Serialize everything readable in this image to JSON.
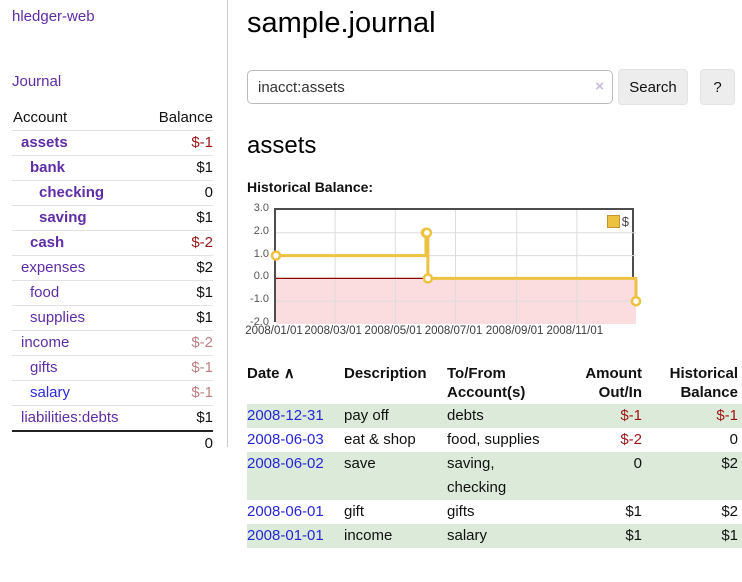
{
  "app": {
    "title": "hledger-web",
    "nav_journal": "Journal"
  },
  "sidebar": {
    "columns": {
      "account": "Account",
      "balance": "Balance"
    },
    "accounts": [
      {
        "name": "assets",
        "depth": 1,
        "emphasis": true,
        "balance": "$-1",
        "balance_tone": "negative",
        "link_tone": "purple"
      },
      {
        "name": "bank",
        "depth": 2,
        "emphasis": true,
        "balance": "$1",
        "balance_tone": "normal",
        "link_tone": "purple"
      },
      {
        "name": "checking",
        "depth": 3,
        "emphasis": true,
        "balance": "0",
        "balance_tone": "normal",
        "link_tone": "purple"
      },
      {
        "name": "saving",
        "depth": 3,
        "emphasis": true,
        "balance": "$1",
        "balance_tone": "normal",
        "link_tone": "purple"
      },
      {
        "name": "cash",
        "depth": 2,
        "emphasis": true,
        "balance": "$-2",
        "balance_tone": "negative",
        "link_tone": "purple"
      },
      {
        "name": "expenses",
        "depth": 1,
        "emphasis": false,
        "balance": "$2",
        "balance_tone": "normal",
        "link_tone": "purple"
      },
      {
        "name": "food",
        "depth": 2,
        "emphasis": false,
        "balance": "$1",
        "balance_tone": "normal",
        "link_tone": "purple"
      },
      {
        "name": "supplies",
        "depth": 2,
        "emphasis": false,
        "balance": "$1",
        "balance_tone": "normal",
        "link_tone": "purple"
      },
      {
        "name": "income",
        "depth": 1,
        "emphasis": false,
        "balance": "$-2",
        "balance_tone": "negative-faded",
        "link_tone": "purple"
      },
      {
        "name": "gifts",
        "depth": 2,
        "emphasis": false,
        "balance": "$-1",
        "balance_tone": "negative-faded",
        "link_tone": "purple"
      },
      {
        "name": "salary",
        "depth": 2,
        "emphasis": false,
        "balance": "$-1",
        "balance_tone": "negative-faded",
        "link_tone": "blue"
      },
      {
        "name": "liabilities:debts",
        "depth": 1,
        "emphasis": false,
        "balance": "$1",
        "balance_tone": "normal",
        "link_tone": "purple"
      }
    ],
    "total": "0"
  },
  "header": {
    "title": "sample.journal"
  },
  "search": {
    "value": "inacct:assets",
    "clear_icon": "×",
    "button_label": "Search",
    "help_label": "?"
  },
  "account_page": {
    "title": "assets",
    "chart_heading": "Historical Balance:"
  },
  "chart_data": {
    "type": "line",
    "step": true,
    "series": [
      {
        "name": "$",
        "color": "#edc240",
        "points": [
          [
            "2008-01-01",
            1
          ],
          [
            "2008-06-01",
            2
          ],
          [
            "2008-06-02",
            2
          ],
          [
            "2008-06-03",
            0
          ],
          [
            "2008-12-31",
            -1
          ]
        ]
      }
    ],
    "xlim": [
      "2008-01-01",
      "2008-12-31"
    ],
    "ylim": [
      -2,
      3
    ],
    "yticks": [
      3.0,
      2.0,
      1.0,
      0.0,
      -1.0,
      -2.0
    ],
    "ytick_labels": [
      "3.0",
      "2.0",
      "1.0",
      "0.0",
      "-1.0",
      "-2.0"
    ],
    "xticks": [
      "2008-01-01",
      "2008-03-01",
      "2008-05-01",
      "2008-07-01",
      "2008-09-01",
      "2008-11-01"
    ],
    "xtick_labels": [
      "2008/01/01",
      "2008/03/01",
      "2008/05/01",
      "2008/07/01",
      "2008/09/01",
      "2008/11/01"
    ],
    "grid": true,
    "legend": {
      "label": "$",
      "position": "top-right"
    },
    "zero_line_color": "#8b0000",
    "negative_region_fill": "#fbdde0"
  },
  "register": {
    "columns": [
      {
        "label": "Date",
        "sort_icon": "∧"
      },
      {
        "label": "Description"
      },
      {
        "label": "To/From",
        "label2": "Account(s)"
      },
      {
        "label": "Amount",
        "label2": "Out/In"
      },
      {
        "label": "Historical",
        "label2": "Balance"
      }
    ],
    "rows": [
      {
        "date": "2008-12-31",
        "description": "pay off",
        "tofrom": "debts",
        "amount": "$-1",
        "amount_tone": "negative",
        "balance": "$-1",
        "balance_tone": "negative"
      },
      {
        "date": "2008-06-03",
        "description": "eat & shop",
        "tofrom": "food, supplies",
        "amount": "$-2",
        "amount_tone": "negative",
        "balance": "0",
        "balance_tone": "normal"
      },
      {
        "date": "2008-06-02",
        "description": "save",
        "tofrom": "saving, checking",
        "amount": "0",
        "amount_tone": "normal",
        "balance": "$2",
        "balance_tone": "normal"
      },
      {
        "date": "2008-06-01",
        "description": "gift",
        "tofrom": "gifts",
        "amount": "$1",
        "amount_tone": "normal",
        "balance": "$2",
        "balance_tone": "normal"
      },
      {
        "date": "2008-01-01",
        "description": "income",
        "tofrom": "salary",
        "amount": "$1",
        "amount_tone": "normal",
        "balance": "$1",
        "balance_tone": "normal"
      }
    ]
  }
}
